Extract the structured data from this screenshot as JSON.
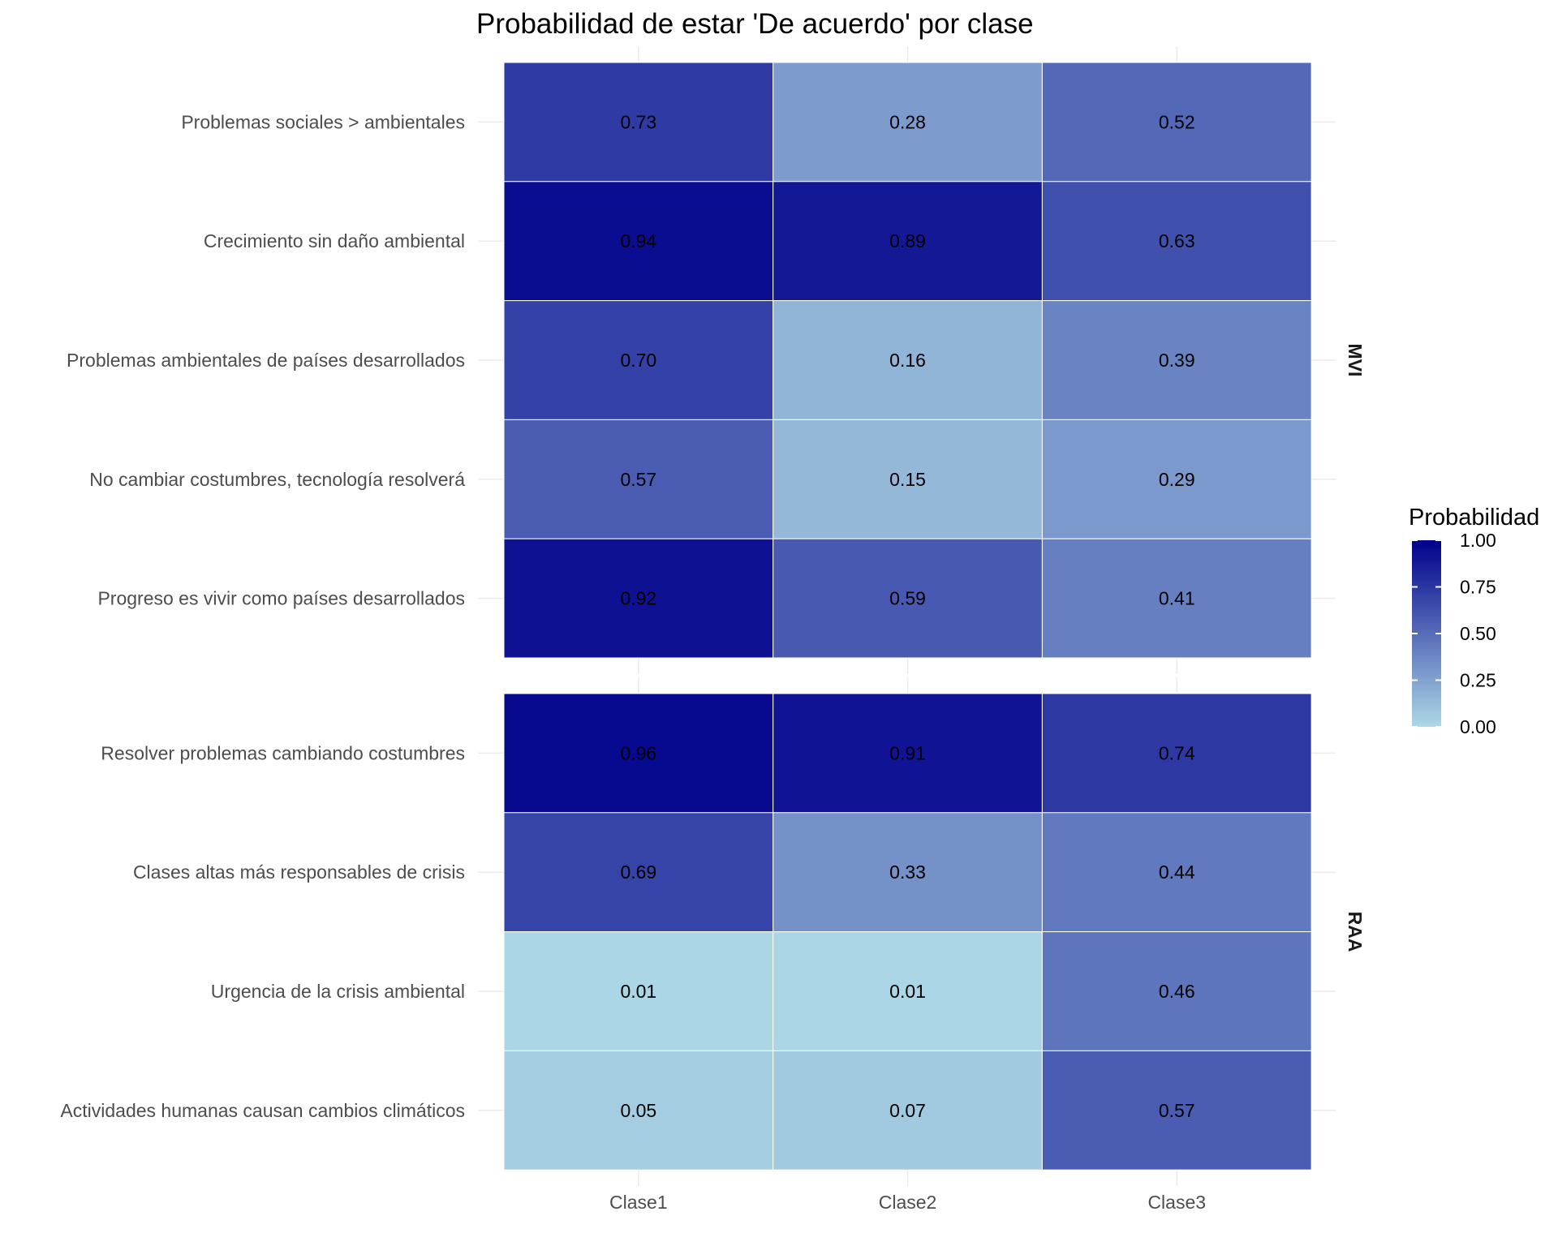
{
  "chart_data": {
    "type": "heatmap",
    "title": "Probabilidad de estar 'De acuerdo' por clase",
    "xlabel": "",
    "ylabel": "",
    "columns": [
      "Clase1",
      "Clase2",
      "Clase3"
    ],
    "panels": [
      {
        "name": "MVI",
        "rows": [
          {
            "label": "Problemas sociales > ambientales",
            "values": [
              0.73,
              0.28,
              0.52
            ],
            "value_labels": [
              "0.73",
              "0.28",
              "0.52"
            ]
          },
          {
            "label": "Crecimiento sin daño ambiental",
            "values": [
              0.94,
              0.89,
              0.63
            ],
            "value_labels": [
              "0.94",
              "0.89",
              "0.63"
            ]
          },
          {
            "label": "Problemas ambientales de países desarrollados",
            "values": [
              0.7,
              0.16,
              0.39
            ],
            "value_labels": [
              "0.70",
              "0.16",
              "0.39"
            ]
          },
          {
            "label": "No cambiar costumbres, tecnología resolverá",
            "values": [
              0.57,
              0.15,
              0.29
            ],
            "value_labels": [
              "0.57",
              "0.15",
              "0.29"
            ]
          },
          {
            "label": "Progreso es vivir como países desarrollados",
            "values": [
              0.92,
              0.59,
              0.41
            ],
            "value_labels": [
              "0.92",
              "0.59",
              "0.41"
            ]
          }
        ]
      },
      {
        "name": "RAA",
        "rows": [
          {
            "label": "Resolver problemas cambiando costumbres",
            "values": [
              0.96,
              0.91,
              0.74
            ],
            "value_labels": [
              "0.96",
              "0.91",
              "0.74"
            ]
          },
          {
            "label": "Clases altas más responsables de crisis",
            "values": [
              0.69,
              0.33,
              0.44
            ],
            "value_labels": [
              "0.69",
              "0.33",
              "0.44"
            ]
          },
          {
            "label": "Urgencia de la crisis ambiental",
            "values": [
              0.01,
              0.01,
              0.46
            ],
            "value_labels": [
              "0.01",
              "0.01",
              "0.46"
            ]
          },
          {
            "label": "Actividades humanas causan cambios climáticos",
            "values": [
              0.05,
              0.07,
              0.57
            ],
            "value_labels": [
              "0.05",
              "0.07",
              "0.57"
            ]
          }
        ]
      }
    ],
    "legend": {
      "title": "Probabilidad",
      "position": "right",
      "range": [
        0,
        1
      ],
      "ticks": [
        1.0,
        0.75,
        0.5,
        0.25,
        0.0
      ],
      "tick_labels": [
        "1.00",
        "0.75",
        "0.50",
        "0.25",
        "0.00"
      ],
      "color_low": "#add8e6",
      "color_high": "#00008b"
    },
    "grid": true
  }
}
